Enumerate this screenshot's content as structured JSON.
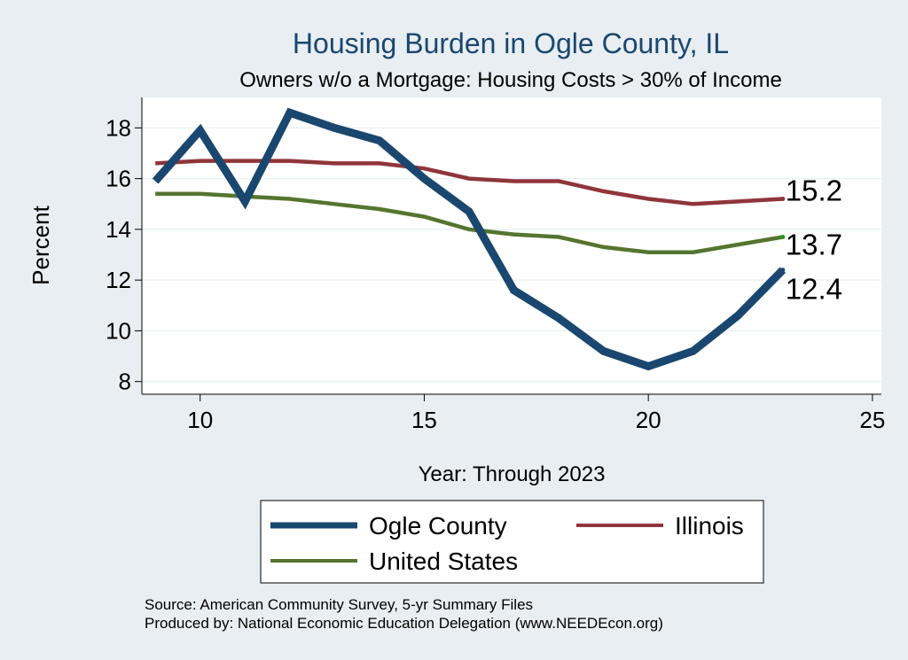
{
  "chart_data": {
    "type": "line",
    "title": "Housing Burden in Ogle County, IL",
    "subtitle": "Owners w/o a Mortgage: Housing Costs > 30% of Income",
    "xlabel": "Year: Through 2023",
    "ylabel": "Percent",
    "xlim": [
      8.7,
      25.2
    ],
    "ylim": [
      7.5,
      19.2
    ],
    "xticks": [
      10,
      15,
      20,
      25
    ],
    "yticks": [
      8,
      10,
      12,
      14,
      16,
      18
    ],
    "grid": true,
    "series": [
      {
        "name": "Ogle County",
        "color": "#1a476f",
        "x": [
          9,
          10,
          11,
          12,
          13,
          14,
          15,
          16,
          17,
          18,
          19,
          20,
          21,
          22,
          23
        ],
        "values": [
          15.9,
          17.9,
          15.1,
          18.6,
          18.0,
          17.5,
          16.0,
          14.7,
          11.6,
          10.5,
          9.2,
          8.6,
          9.2,
          10.6,
          12.4
        ],
        "end_label": "12.4"
      },
      {
        "name": "Illinois",
        "color": "#90353b",
        "x": [
          9,
          10,
          11,
          12,
          13,
          14,
          15,
          16,
          17,
          18,
          19,
          20,
          21,
          22,
          23
        ],
        "values": [
          16.6,
          16.7,
          16.7,
          16.7,
          16.6,
          16.6,
          16.4,
          16.0,
          15.9,
          15.9,
          15.5,
          15.2,
          15.0,
          15.1,
          15.2
        ],
        "end_label": "15.2"
      },
      {
        "name": "United States",
        "color": "#55752f",
        "x": [
          9,
          10,
          11,
          12,
          13,
          14,
          15,
          16,
          17,
          18,
          19,
          20,
          21,
          22,
          23
        ],
        "values": [
          15.4,
          15.4,
          15.3,
          15.2,
          15.0,
          14.8,
          14.5,
          14.0,
          13.8,
          13.7,
          13.3,
          13.1,
          13.1,
          13.4,
          13.7
        ],
        "end_label": "13.7"
      }
    ],
    "legend_position": "bottom"
  },
  "footer": {
    "source": "Source: American Community Survey, 5-yr Summary Files",
    "produced": "Produced by: National Economic Education Delegation (www.NEEDEcon.org)"
  }
}
